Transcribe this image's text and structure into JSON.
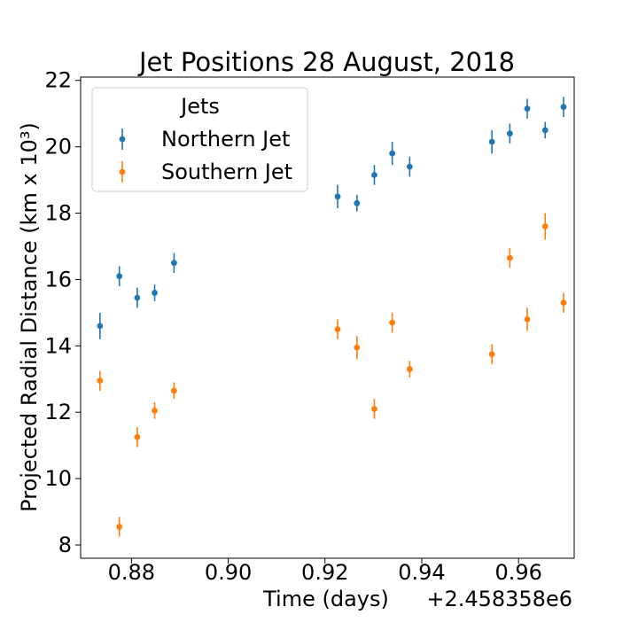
{
  "chart_data": {
    "type": "scatter",
    "title": "Jet Positions 28 August, 2018",
    "xlabel": "Time (days)",
    "ylabel": "Projected Radial Distance (km x 10³)",
    "x_offset_label": "+2.458358e6",
    "xlim": [
      0.8695,
      0.9715
    ],
    "ylim": [
      7.6,
      22.1
    ],
    "x_ticks": [
      0.88,
      0.9,
      0.92,
      0.94,
      0.96
    ],
    "x_tick_labels": [
      "0.88",
      "0.90",
      "0.92",
      "0.94",
      "0.96"
    ],
    "y_ticks": [
      8,
      10,
      12,
      14,
      16,
      18,
      20,
      22
    ],
    "y_tick_labels": [
      "8",
      "10",
      "12",
      "14",
      "16",
      "18",
      "20",
      "22"
    ],
    "legend": {
      "title": "Jets",
      "placement": "upper-left"
    },
    "series": [
      {
        "name": "Northern Jet",
        "color": "#1f77b4",
        "x": [
          0.8735,
          0.8775,
          0.8812,
          0.8848,
          0.8888,
          0.9226,
          0.9266,
          0.9302,
          0.9339,
          0.9375,
          0.9545,
          0.9582,
          0.9618,
          0.9655,
          0.9693
        ],
        "y": [
          14.6,
          16.1,
          15.45,
          15.6,
          16.5,
          18.5,
          18.3,
          19.15,
          19.8,
          19.4,
          20.15,
          20.4,
          21.15,
          20.5,
          21.2
        ],
        "err": [
          0.4,
          0.3,
          0.3,
          0.25,
          0.3,
          0.35,
          0.25,
          0.3,
          0.35,
          0.3,
          0.35,
          0.3,
          0.3,
          0.25,
          0.3
        ]
      },
      {
        "name": "Southern Jet",
        "color": "#ff7f0e",
        "x": [
          0.8735,
          0.8775,
          0.8812,
          0.8848,
          0.8888,
          0.9226,
          0.9266,
          0.9302,
          0.9339,
          0.9375,
          0.9545,
          0.9582,
          0.9618,
          0.9655,
          0.9693
        ],
        "y": [
          12.95,
          8.55,
          11.25,
          12.05,
          12.65,
          14.5,
          13.95,
          12.1,
          14.7,
          13.3,
          13.75,
          16.65,
          14.8,
          17.6,
          15.3
        ],
        "err": [
          0.3,
          0.3,
          0.3,
          0.25,
          0.25,
          0.3,
          0.35,
          0.3,
          0.3,
          0.25,
          0.3,
          0.3,
          0.35,
          0.4,
          0.3
        ]
      }
    ]
  }
}
